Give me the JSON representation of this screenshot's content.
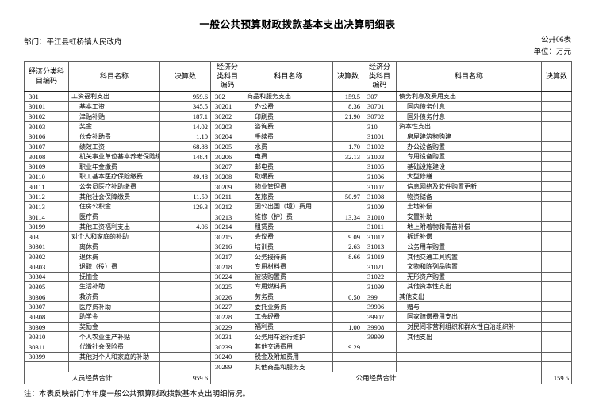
{
  "page": {
    "title": "一般公共预算财政拨款基本支出决算明细表",
    "department": "部门：平江县虹桥镇人民政府",
    "table_number": "公开06表",
    "unit": "单位：万元",
    "note": "注：本表反映部门本年度一般公共预算财政拨款基本支出明细情况。"
  },
  "table": {
    "column_headers": {
      "code": "经济分类科目编码",
      "name": "科目名称",
      "amount": "决算数"
    },
    "groups": [
      {
        "rows": [
          [
            "301",
            "工资福利支出",
            "959.6"
          ],
          [
            "30101",
            "基本工资",
            "345.5"
          ],
          [
            "30102",
            "津贴补贴",
            "187.1"
          ],
          [
            "30103",
            "奖金",
            "14.02"
          ],
          [
            "30106",
            "伙食补助费",
            "1.10"
          ],
          [
            "30107",
            "绩效工资",
            "68.88"
          ],
          [
            "30108",
            "机关事业单位基本养老保险缴",
            "148.4"
          ],
          [
            "30109",
            "职业年金缴费",
            ""
          ],
          [
            "30110",
            "职工基本医疗保险缴费",
            "49.48"
          ],
          [
            "30111",
            "公务员医疗补助缴费",
            ""
          ],
          [
            "30112",
            "其他社会保障缴费",
            "11.59"
          ],
          [
            "30113",
            "住房公积金",
            "129.3"
          ],
          [
            "30114",
            "医疗费",
            ""
          ],
          [
            "30199",
            "其他工资福利支出",
            "4.06"
          ],
          [
            "303",
            "对个人和家庭的补助",
            ""
          ],
          [
            "30301",
            "离休费",
            ""
          ],
          [
            "30302",
            "退休费",
            ""
          ],
          [
            "30303",
            "退职（役）费",
            ""
          ],
          [
            "30304",
            "抚恤金",
            ""
          ],
          [
            "30305",
            "生活补助",
            ""
          ],
          [
            "30306",
            "救济费",
            ""
          ],
          [
            "30307",
            "医疗费补助",
            ""
          ],
          [
            "30308",
            "助学金",
            ""
          ],
          [
            "30309",
            "奖励金",
            ""
          ],
          [
            "30310",
            "个人农业生产补贴",
            ""
          ],
          [
            "30311",
            "代缴社会保险费",
            ""
          ],
          [
            "30399",
            "其他对个人和家庭的补助",
            ""
          ],
          [
            "",
            "",
            ""
          ]
        ]
      },
      {
        "rows": [
          [
            "302",
            "商品和服务支出",
            "159.5"
          ],
          [
            "30201",
            "办公费",
            "8.36"
          ],
          [
            "30202",
            "印刷费",
            "21.90"
          ],
          [
            "30203",
            "咨询费",
            ""
          ],
          [
            "30204",
            "手续费",
            ""
          ],
          [
            "30205",
            "水费",
            "1.70"
          ],
          [
            "30206",
            "电费",
            "32.13"
          ],
          [
            "30207",
            "邮电费",
            ""
          ],
          [
            "30208",
            "取暖费",
            ""
          ],
          [
            "30209",
            "物业管理费",
            ""
          ],
          [
            "30211",
            "差旅费",
            "50.97"
          ],
          [
            "30212",
            "因公出国（境）费用",
            ""
          ],
          [
            "30213",
            "维修（护）费",
            "13.34"
          ],
          [
            "30214",
            "租赁费",
            ""
          ],
          [
            "30215",
            "会议费",
            "9.09"
          ],
          [
            "30216",
            "培训费",
            "2.63"
          ],
          [
            "30217",
            "公务接待费",
            "8.66"
          ],
          [
            "30218",
            "专用材料费",
            ""
          ],
          [
            "30224",
            "被装购置费",
            ""
          ],
          [
            "30225",
            "专用燃料费",
            ""
          ],
          [
            "30226",
            "劳务费",
            "0.50"
          ],
          [
            "30227",
            "委托业务费",
            ""
          ],
          [
            "30228",
            "工会经费",
            ""
          ],
          [
            "30229",
            "福利费",
            "1.00"
          ],
          [
            "30231",
            "公务用车运行维护",
            ""
          ],
          [
            "30239",
            "其他交通费用",
            "9.29"
          ],
          [
            "30240",
            "税金及附加费用",
            ""
          ],
          [
            "30299",
            "其他商品和服务支",
            ""
          ]
        ]
      },
      {
        "rows": [
          [
            "307",
            "债务利息及费用支出",
            ""
          ],
          [
            "30701",
            "国内债务付息",
            ""
          ],
          [
            "30702",
            "国外债务付息",
            ""
          ],
          [
            "310",
            "资本性支出",
            ""
          ],
          [
            "31001",
            "房屋建筑物购建",
            ""
          ],
          [
            "31002",
            "办公设备购置",
            ""
          ],
          [
            "31003",
            "专用设备购置",
            ""
          ],
          [
            "31005",
            "基础设施建设",
            ""
          ],
          [
            "31006",
            "大型修缮",
            ""
          ],
          [
            "31007",
            "信息网络及软件购置更新",
            ""
          ],
          [
            "31008",
            "物资储备",
            ""
          ],
          [
            "31009",
            "土地补偿",
            ""
          ],
          [
            "31010",
            "安置补助",
            ""
          ],
          [
            "31011",
            "地上附着物和青苗补偿",
            ""
          ],
          [
            "31012",
            "拆迁补偿",
            ""
          ],
          [
            "31013",
            "公务用车购置",
            ""
          ],
          [
            "31019",
            "其他交通工具购置",
            ""
          ],
          [
            "31021",
            "文物和陈列品购置",
            ""
          ],
          [
            "31022",
            "无形资产购置",
            ""
          ],
          [
            "31099",
            "其他资本性支出",
            ""
          ],
          [
            "399",
            "其他支出",
            ""
          ],
          [
            "39906",
            "赠与",
            ""
          ],
          [
            "39907",
            "国家赔偿费用支出",
            ""
          ],
          [
            "39908",
            "对民间非营利组织和群众性自治组织补",
            ""
          ],
          [
            "39999",
            "其他支出",
            ""
          ],
          [
            "",
            "",
            ""
          ],
          [
            "",
            "",
            ""
          ],
          [
            "",
            "",
            ""
          ]
        ]
      }
    ],
    "totals": {
      "personnel_label": "人员经费合计",
      "personnel_value": "959.6",
      "public_label": "公用经费合计",
      "public_value": "159.5"
    }
  }
}
